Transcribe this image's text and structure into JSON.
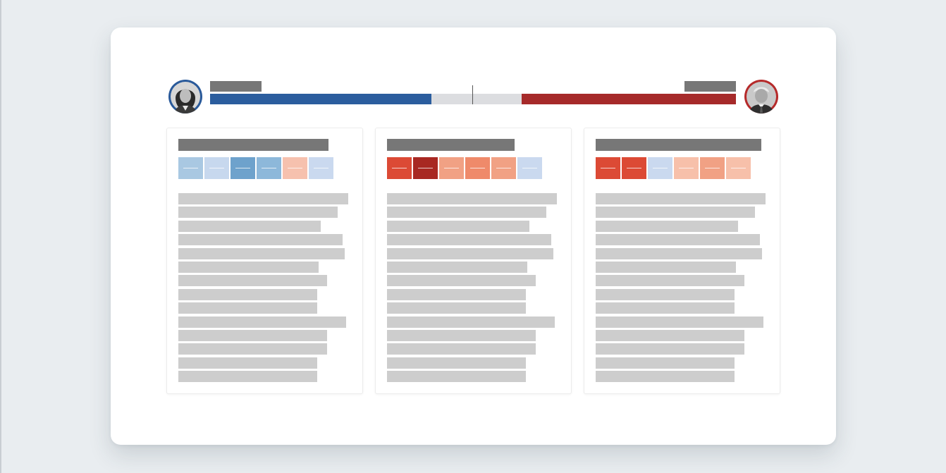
{
  "header": {
    "left_candidate": {
      "avatar_icon": "portrait-photo-icon",
      "avatar_color": "#2a5a9a"
    },
    "right_candidate": {
      "avatar_icon": "portrait-photo-icon",
      "avatar_color": "#b52a2a"
    },
    "tally": {
      "blue_share": 0.42,
      "gray_share": 0.17,
      "red_share": 0.41,
      "colors": {
        "blue": "#2b5d9e",
        "gray": "#dcdde0",
        "red": "#a62a2a"
      }
    }
  },
  "columns": [
    {
      "tile_colors": [
        "#a9c8e2",
        "#c7d8ee",
        "#6ea2cc",
        "#8db8da",
        "#f6c1ae",
        "#cad9ef"
      ],
      "line_fills": [
        0.99,
        0.93,
        0.83,
        0.96,
        0.97,
        0.82,
        0.87,
        0.81,
        0.81,
        0.98,
        0.87,
        0.87,
        0.81,
        0.81
      ]
    },
    {
      "tile_colors": [
        "#dc4a35",
        "#a82822",
        "#f1a184",
        "#ef8a6a",
        "#f1a184",
        "#cad9ef"
      ],
      "line_fills": [
        0.99,
        0.93,
        0.83,
        0.96,
        0.97,
        0.82,
        0.87,
        0.81,
        0.81,
        0.98,
        0.87,
        0.87,
        0.81,
        0.81
      ]
    },
    {
      "tile_colors": [
        "#dc4a35",
        "#dc4a35",
        "#cad9ef",
        "#f7c0aa",
        "#f1a184",
        "#f7c0aa"
      ],
      "line_fills": [
        0.99,
        0.93,
        0.83,
        0.96,
        0.97,
        0.82,
        0.87,
        0.81,
        0.81,
        0.98,
        0.87,
        0.87,
        0.81,
        0.81
      ]
    }
  ]
}
